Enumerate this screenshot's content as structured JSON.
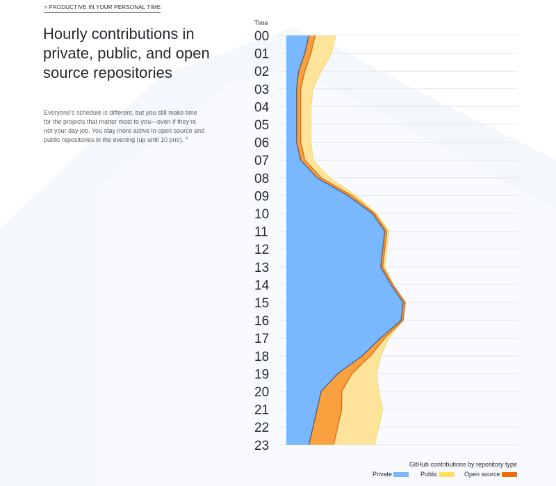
{
  "eyebrow": "> PRODUCTIVE IN YOUR PERSONAL TIME",
  "title": "Hourly contributions in private, public, and open source repositories",
  "description": "Everyone’s schedule is different, but you still make time for the projects that matter most to you—even if they’re not your day job. You stay more active in open source and public repositories in the evening (up until 10 pm!).",
  "asterisk": "*",
  "colors": {
    "private": "#79b8ff",
    "public": "#ffdf5d",
    "open_source": "#f66a0a",
    "open_source_fill": "#f9a03f"
  },
  "chart_data": {
    "type": "area",
    "orientation": "vertical-streamgraph",
    "y_axis_title": "Time",
    "hours": [
      "00",
      "01",
      "02",
      "03",
      "04",
      "05",
      "06",
      "07",
      "08",
      "09",
      "10",
      "11",
      "12",
      "13",
      "14",
      "15",
      "16",
      "17",
      "18",
      "19",
      "20",
      "21",
      "22",
      "23"
    ],
    "legend_title": "GitHub contributions by repository type",
    "series": [
      {
        "name": "Private",
        "values": [
          11,
          9,
          6,
          5,
          5,
          5,
          5,
          7,
          15,
          30,
          42,
          48,
          47,
          46,
          51,
          57,
          56,
          46,
          37,
          25,
          17,
          15,
          13,
          11
        ]
      },
      {
        "name": "Public",
        "values": [
          3,
          3,
          3,
          2,
          2,
          2,
          2,
          2,
          2,
          2,
          1,
          1,
          1,
          1,
          1,
          1,
          1,
          2,
          4,
          7,
          10,
          12,
          12,
          12
        ]
      },
      {
        "name": "Open source",
        "values": [
          10,
          10,
          8,
          6,
          5,
          5,
          5,
          4,
          4,
          2,
          1,
          1,
          1,
          1,
          0,
          0,
          0,
          2,
          5,
          12,
          18,
          20,
          20,
          20
        ]
      }
    ]
  }
}
